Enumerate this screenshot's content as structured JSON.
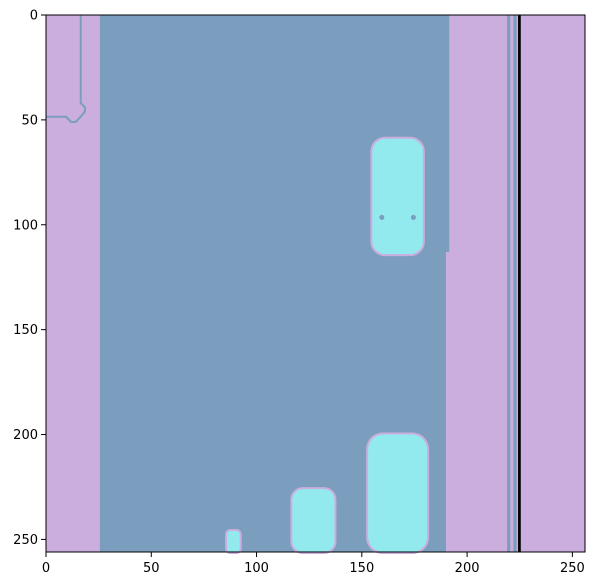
{
  "chart_data": {
    "type": "heatmap",
    "title": "",
    "xlabel": "",
    "ylabel": "",
    "xlim": [
      0,
      256
    ],
    "ylim": [
      256,
      0
    ],
    "grid": false,
    "legend": "none",
    "x_ticks": [
      0,
      50,
      100,
      150,
      200,
      250
    ],
    "y_ticks": [
      0,
      50,
      100,
      150,
      200,
      250
    ],
    "colors": {
      "lavender": "#cbadde",
      "steel_blue": "#7b9ebe",
      "cyan": "#92eaee",
      "black": "#000000"
    },
    "regions": [
      {
        "color": "lavender",
        "x": [
          0,
          25.5
        ],
        "y": [
          0,
          256
        ]
      },
      {
        "color": "steel_blue",
        "x": [
          25.5,
          190
        ],
        "y": [
          0,
          256
        ]
      },
      {
        "color": "lavender",
        "x": [
          190,
          256
        ],
        "y": [
          0,
          256
        ]
      },
      {
        "color": "steel_blue",
        "x": [
          190,
          191.5
        ],
        "y": [
          0,
          113
        ]
      },
      {
        "color": "steel_blue",
        "x": [
          219,
          220.5
        ],
        "y": [
          0,
          256
        ]
      },
      {
        "color": "steel_blue",
        "x": [
          222,
          223.5
        ],
        "y": [
          0,
          256
        ]
      },
      {
        "color": "black",
        "x": [
          224.2,
          225.5
        ],
        "y": [
          0,
          256
        ]
      }
    ],
    "lines": [
      {
        "color": "steel_blue",
        "points": [
          [
            0,
            48.5
          ],
          [
            9.5,
            48.5
          ],
          [
            12,
            51
          ],
          [
            14,
            51
          ],
          [
            16,
            49
          ],
          [
            18.5,
            46
          ],
          [
            18.5,
            44
          ],
          [
            16.5,
            42
          ],
          [
            16.5,
            0
          ]
        ]
      }
    ],
    "blobs": [
      {
        "color": "cyan",
        "x": [
          155,
          179
        ],
        "y": [
          59,
          114
        ],
        "rounded": true
      },
      {
        "color": "cyan",
        "x": [
          153,
          181
        ],
        "y": [
          200,
          256
        ],
        "rounded": true
      },
      {
        "color": "cyan",
        "x": [
          117,
          137
        ],
        "y": [
          226,
          256
        ],
        "rounded": true
      },
      {
        "color": "cyan",
        "x": [
          86,
          92
        ],
        "y": [
          246,
          256
        ],
        "rounded": true
      }
    ],
    "dots": [
      {
        "color": "steel_blue",
        "x": 159.5,
        "y": 96.5
      },
      {
        "color": "steel_blue",
        "x": 174.5,
        "y": 96.5
      }
    ]
  }
}
